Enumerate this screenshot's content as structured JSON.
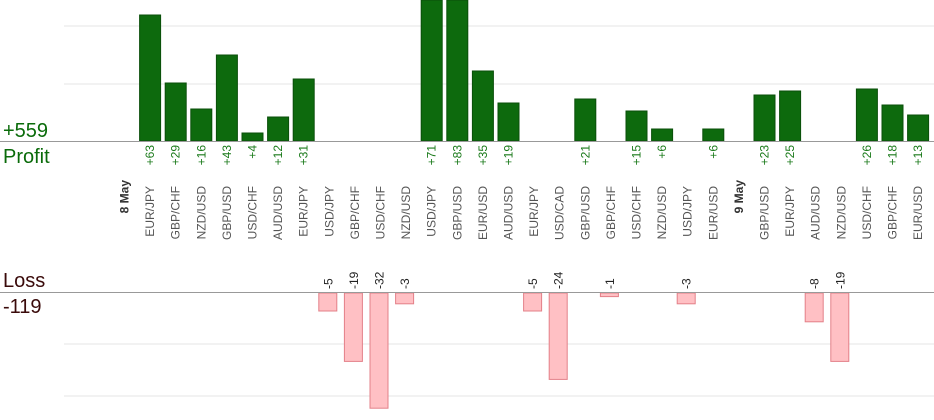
{
  "labels": {
    "profit_total": "+559",
    "profit": "Profit",
    "loss": "Loss",
    "loss_total": "-119"
  },
  "colors": {
    "profit_bar": "#0d6a0d",
    "profit_bar_edge": "#0a4f0a",
    "profit_label": "#1a7a1a",
    "loss_bar": "#ffc0c4",
    "loss_bar_edge": "#e38088",
    "loss_label": "#222222",
    "tick_text": "#555555",
    "date_text": "#333333",
    "grid": "#e6e6e6",
    "axis": "#999999"
  },
  "chart_data": {
    "type": "bar",
    "series": [
      {
        "name": "Profit"
      },
      {
        "name": "Loss"
      }
    ],
    "items": [
      {
        "date": "8 May"
      },
      {
        "category": "EUR/JPY",
        "value": 63,
        "label": "+63"
      },
      {
        "category": "GBP/CHF",
        "value": 29,
        "label": "+29"
      },
      {
        "category": "NZD/USD",
        "value": 16,
        "label": "+16"
      },
      {
        "category": "GBP/USD",
        "value": 43,
        "label": "+43"
      },
      {
        "category": "USD/CHF",
        "value": 4,
        "label": "+4"
      },
      {
        "category": "AUD/USD",
        "value": 12,
        "label": "+12"
      },
      {
        "category": "EUR/JPY",
        "value": 31,
        "label": "+31"
      },
      {
        "category": "USD/JPY",
        "value": -5,
        "label": "-5"
      },
      {
        "category": "GBP/CHF",
        "value": -19,
        "label": "-19"
      },
      {
        "category": "USD/CHF",
        "value": -32,
        "label": "-32"
      },
      {
        "category": "NZD/USD",
        "value": -3,
        "label": "-3"
      },
      {
        "category": "USD/JPY",
        "value": 71,
        "label": "+71"
      },
      {
        "category": "GBP/USD",
        "value": 83,
        "label": "+83"
      },
      {
        "category": "EUR/USD",
        "value": 35,
        "label": "+35"
      },
      {
        "category": "AUD/USD",
        "value": 19,
        "label": "+19"
      },
      {
        "category": "EUR/JPY",
        "value": -5,
        "label": "-5"
      },
      {
        "category": "USD/CAD",
        "value": -24,
        "label": "-24"
      },
      {
        "category": "GBP/USD",
        "value": 21,
        "label": "+21"
      },
      {
        "category": "GBP/CHF",
        "value": -1,
        "label": "-1"
      },
      {
        "category": "USD/CHF",
        "value": 15,
        "label": "+15"
      },
      {
        "category": "NZD/USD",
        "value": 6,
        "label": "+6"
      },
      {
        "category": "USD/JPY",
        "value": -3,
        "label": "-3"
      },
      {
        "category": "EUR/USD",
        "value": 6,
        "label": "+6"
      },
      {
        "date": "9 May"
      },
      {
        "category": "GBP/USD",
        "value": 23,
        "label": "+23"
      },
      {
        "category": "EUR/JPY",
        "value": 25,
        "label": "+25"
      },
      {
        "category": "AUD/USD",
        "value": -8,
        "label": "-8"
      },
      {
        "category": "NZD/USD",
        "value": -19,
        "label": "-19"
      },
      {
        "category": "USD/CHF",
        "value": 26,
        "label": "+26"
      },
      {
        "category": "GBP/CHF",
        "value": 18,
        "label": "+18"
      },
      {
        "category": "EUR/USD",
        "value": 13,
        "label": "+13"
      }
    ]
  }
}
